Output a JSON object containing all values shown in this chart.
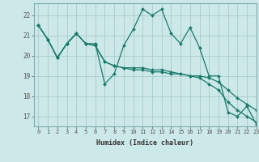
{
  "background_color": "#cce8e8",
  "grid_color": "#aacccc",
  "line_color": "#1a7a6a",
  "x_label": "Humidex (Indice chaleur)",
  "xlim": [
    -0.5,
    23
  ],
  "ylim": [
    16.5,
    22.6
  ],
  "yticks": [
    17,
    18,
    19,
    20,
    21,
    22
  ],
  "xticks": [
    0,
    1,
    2,
    3,
    4,
    5,
    6,
    7,
    8,
    9,
    10,
    11,
    12,
    13,
    14,
    15,
    16,
    17,
    18,
    19,
    20,
    21,
    22,
    23
  ],
  "line1": [
    21.5,
    20.8,
    19.9,
    20.6,
    21.1,
    20.6,
    20.6,
    18.6,
    19.1,
    20.5,
    21.3,
    22.3,
    22.0,
    22.3,
    21.1,
    20.6,
    21.4,
    20.4,
    19.0,
    19.0,
    17.2,
    17.0,
    17.5,
    16.6
  ],
  "line2": [
    21.5,
    20.8,
    19.9,
    20.6,
    21.1,
    20.6,
    20.5,
    19.7,
    19.5,
    19.4,
    19.3,
    19.3,
    19.2,
    19.2,
    19.1,
    19.1,
    19.0,
    18.9,
    18.6,
    18.3,
    17.7,
    17.3,
    17.0,
    16.7
  ],
  "line3": [
    21.5,
    20.8,
    19.9,
    20.6,
    21.1,
    20.6,
    20.5,
    19.7,
    19.5,
    19.4,
    19.4,
    19.4,
    19.3,
    19.3,
    19.2,
    19.1,
    19.0,
    19.0,
    18.9,
    18.7,
    18.3,
    17.9,
    17.6,
    17.3
  ]
}
